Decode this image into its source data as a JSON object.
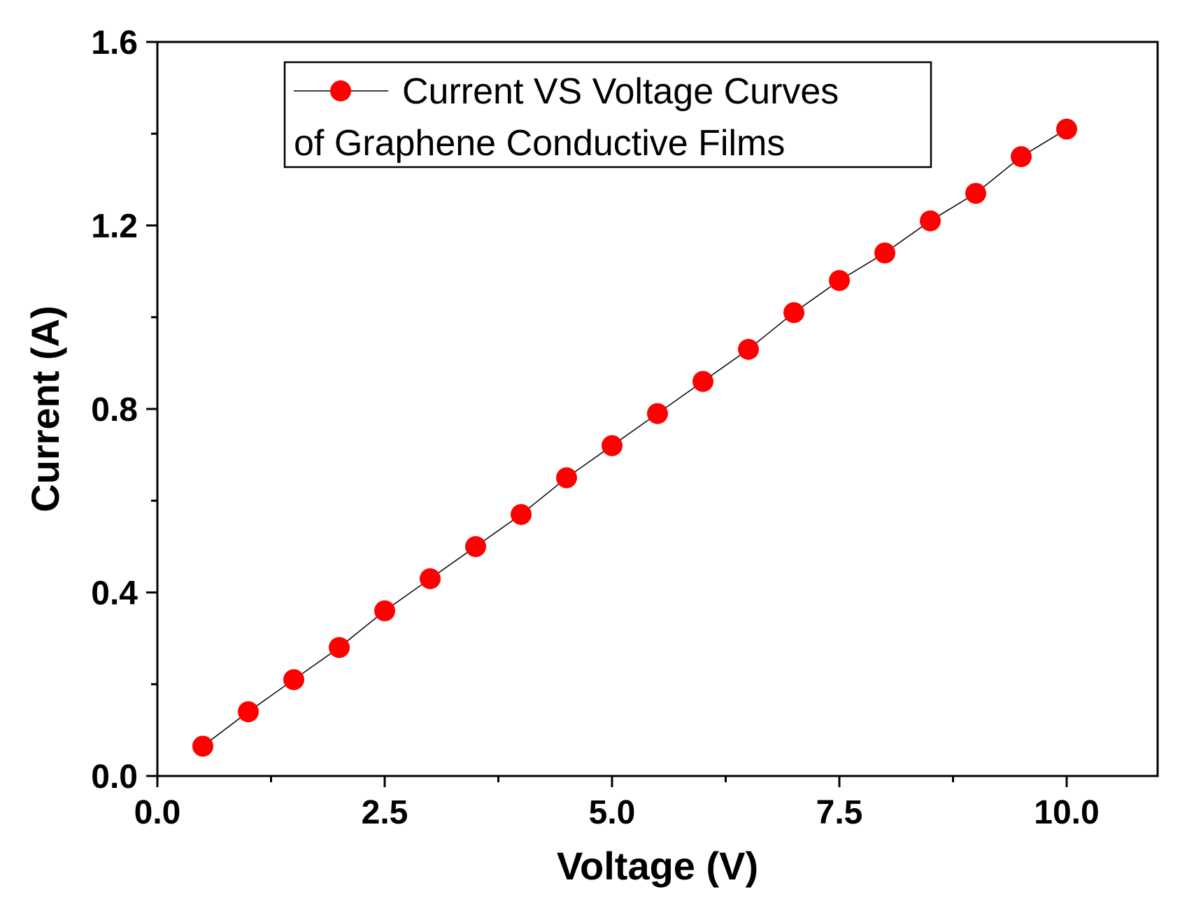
{
  "chart_data": {
    "type": "line",
    "title": "",
    "xlabel": "Voltage (V)",
    "ylabel": "Current (A)",
    "xlim": [
      0,
      11
    ],
    "ylim": [
      0,
      1.6
    ],
    "x_ticks": [
      "0.0",
      "2.5",
      "5.0",
      "7.5",
      "10.0"
    ],
    "y_ticks": [
      "0.0",
      "0.4",
      "0.8",
      "1.2",
      "1.6"
    ],
    "grid": false,
    "legend_position": "top-center",
    "series": [
      {
        "name": "Current VS Voltage Curves of Graphene Conductive Films",
        "legend_lines": [
          "Current VS Voltage Curves",
          "of Graphene Conductive Films"
        ],
        "color": "#ff0000",
        "line_color": "#000000",
        "marker": "circle",
        "x": [
          0.5,
          1.0,
          1.5,
          2.0,
          2.5,
          3.0,
          3.5,
          4.0,
          4.5,
          5.0,
          5.5,
          6.0,
          6.5,
          7.0,
          7.5,
          8.0,
          8.5,
          9.0,
          9.5,
          10.0
        ],
        "y": [
          0.065,
          0.14,
          0.21,
          0.28,
          0.36,
          0.43,
          0.5,
          0.57,
          0.65,
          0.72,
          0.79,
          0.86,
          0.93,
          1.01,
          1.08,
          1.14,
          1.21,
          1.27,
          1.35,
          1.41
        ]
      }
    ]
  }
}
